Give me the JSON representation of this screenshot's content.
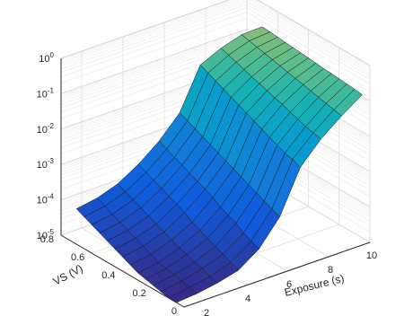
{
  "chart_data": {
    "type": "surface",
    "title": "",
    "xlabel": "VS (V)",
    "ylabel": "Exposure (s)",
    "zlabel": "",
    "zscale": "log",
    "grid": true,
    "xlim": [
      0,
      0.8
    ],
    "ylim": [
      1,
      10
    ],
    "zlim": [
      1e-05,
      1
    ],
    "x_ticks": [
      "0",
      "0.2",
      "0.4",
      "0.6",
      "0.8"
    ],
    "y_ticks": [
      "2",
      "4",
      "6",
      "8",
      "10"
    ],
    "z_ticks": [
      {
        "base": "10",
        "exp": "-5"
      },
      {
        "base": "10",
        "exp": "-4"
      },
      {
        "base": "10",
        "exp": "-3"
      },
      {
        "base": "10",
        "exp": "-2"
      },
      {
        "base": "10",
        "exp": "-1"
      },
      {
        "base": "10",
        "exp": "0"
      }
    ],
    "colormap": "parula",
    "exposure_s": [
      1,
      2,
      3,
      4,
      5,
      6,
      7,
      8,
      9,
      10
    ],
    "vs_v": [
      0.05,
      0.1,
      0.15,
      0.2,
      0.25,
      0.3,
      0.35,
      0.4,
      0.45,
      0.5,
      0.55,
      0.6,
      0.65,
      0.7
    ],
    "log10_values_note_rows_by_vs": "z rows follow vs_v, columns follow exposure_s",
    "log10_z": [
      [
        -5.0,
        -4.95,
        -4.85,
        -4.7,
        -4.3,
        -3.6,
        -2.4,
        -1.8,
        -1.35,
        -0.95
      ],
      [
        -5.0,
        -4.9,
        -4.8,
        -4.6,
        -4.2,
        -3.5,
        -2.3,
        -1.75,
        -1.3,
        -0.92
      ],
      [
        -4.95,
        -4.85,
        -4.7,
        -4.5,
        -4.1,
        -3.4,
        -2.25,
        -1.7,
        -1.25,
        -0.9
      ],
      [
        -4.9,
        -4.8,
        -4.65,
        -4.4,
        -3.95,
        -3.3,
        -2.15,
        -1.62,
        -1.2,
        -0.88
      ],
      [
        -4.85,
        -4.75,
        -4.55,
        -4.3,
        -3.85,
        -3.2,
        -2.05,
        -1.55,
        -1.15,
        -0.86
      ],
      [
        -4.8,
        -4.7,
        -4.5,
        -4.2,
        -3.75,
        -3.1,
        -1.95,
        -1.45,
        -1.1,
        -0.85
      ],
      [
        -4.7,
        -4.6,
        -4.4,
        -4.1,
        -3.6,
        -3.0,
        -1.85,
        -1.4,
        -1.05,
        -0.82
      ],
      [
        -4.6,
        -4.5,
        -4.3,
        -3.95,
        -3.5,
        -2.9,
        -1.75,
        -1.32,
        -1.0,
        -0.8
      ],
      [
        -4.5,
        -4.4,
        -4.2,
        -3.85,
        -3.4,
        -2.8,
        -1.65,
        -1.25,
        -0.95,
        -0.78
      ],
      [
        -4.4,
        -4.3,
        -4.1,
        -3.75,
        -3.3,
        -2.7,
        -1.55,
        -1.18,
        -0.9,
        -0.76
      ],
      [
        -4.3,
        -4.2,
        -4.0,
        -3.65,
        -3.2,
        -2.6,
        -1.45,
        -1.1,
        -0.85,
        -0.74
      ],
      [
        -4.2,
        -4.1,
        -3.9,
        -3.55,
        -3.1,
        -2.5,
        -1.35,
        -1.02,
        -0.8,
        -0.72
      ],
      [
        -4.1,
        -4.0,
        -3.8,
        -3.45,
        -3.0,
        -2.4,
        -1.25,
        -0.95,
        -0.75,
        -0.7
      ],
      [
        -4.0,
        -3.9,
        -3.7,
        -3.35,
        -2.9,
        -2.3,
        -1.15,
        -0.88,
        -0.7,
        -0.68
      ]
    ]
  }
}
